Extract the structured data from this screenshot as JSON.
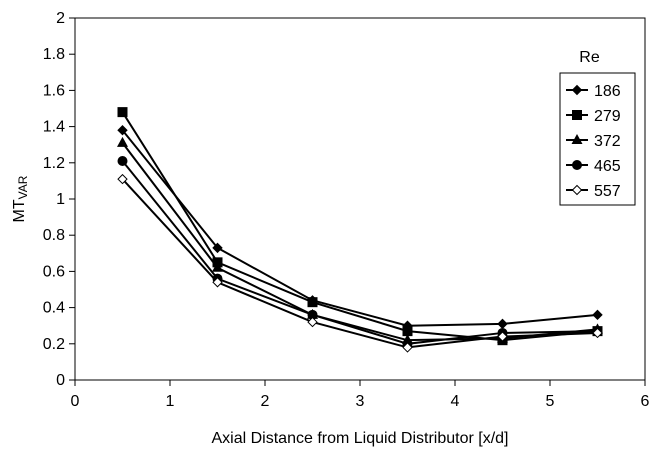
{
  "chart_data": {
    "type": "line",
    "title": "",
    "xlabel": "Axial Distance from Liquid Distributor [x/d]",
    "ylabel": "MT",
    "ylabel_subscript": "VAR",
    "xlim": [
      0,
      6
    ],
    "ylim": [
      0,
      2
    ],
    "x_ticks": [
      "0",
      "1",
      "2",
      "3",
      "4",
      "5",
      "6"
    ],
    "y_ticks": [
      "0",
      "0.2",
      "0.4",
      "0.6",
      "0.8",
      "1",
      "1.2",
      "1.4",
      "1.6",
      "1.8",
      "2"
    ],
    "grid": false,
    "legend_title": "Re",
    "legend_position": "right",
    "x": [
      0.5,
      1.5,
      2.5,
      3.5,
      4.5,
      5.5
    ],
    "series": [
      {
        "name": "186",
        "marker": "diamond-filled",
        "values": [
          1.38,
          0.73,
          0.44,
          0.3,
          0.31,
          0.36
        ]
      },
      {
        "name": "279",
        "marker": "square-filled",
        "values": [
          1.48,
          0.65,
          0.43,
          0.27,
          0.22,
          0.27
        ]
      },
      {
        "name": "372",
        "marker": "triangle-filled",
        "values": [
          1.31,
          0.62,
          0.36,
          0.22,
          0.23,
          0.28
        ]
      },
      {
        "name": "465",
        "marker": "circle-filled",
        "values": [
          1.21,
          0.56,
          0.36,
          0.2,
          0.26,
          0.27
        ]
      },
      {
        "name": "557",
        "marker": "diamond-open",
        "values": [
          1.11,
          0.54,
          0.32,
          0.18,
          0.24,
          0.26
        ]
      }
    ]
  }
}
